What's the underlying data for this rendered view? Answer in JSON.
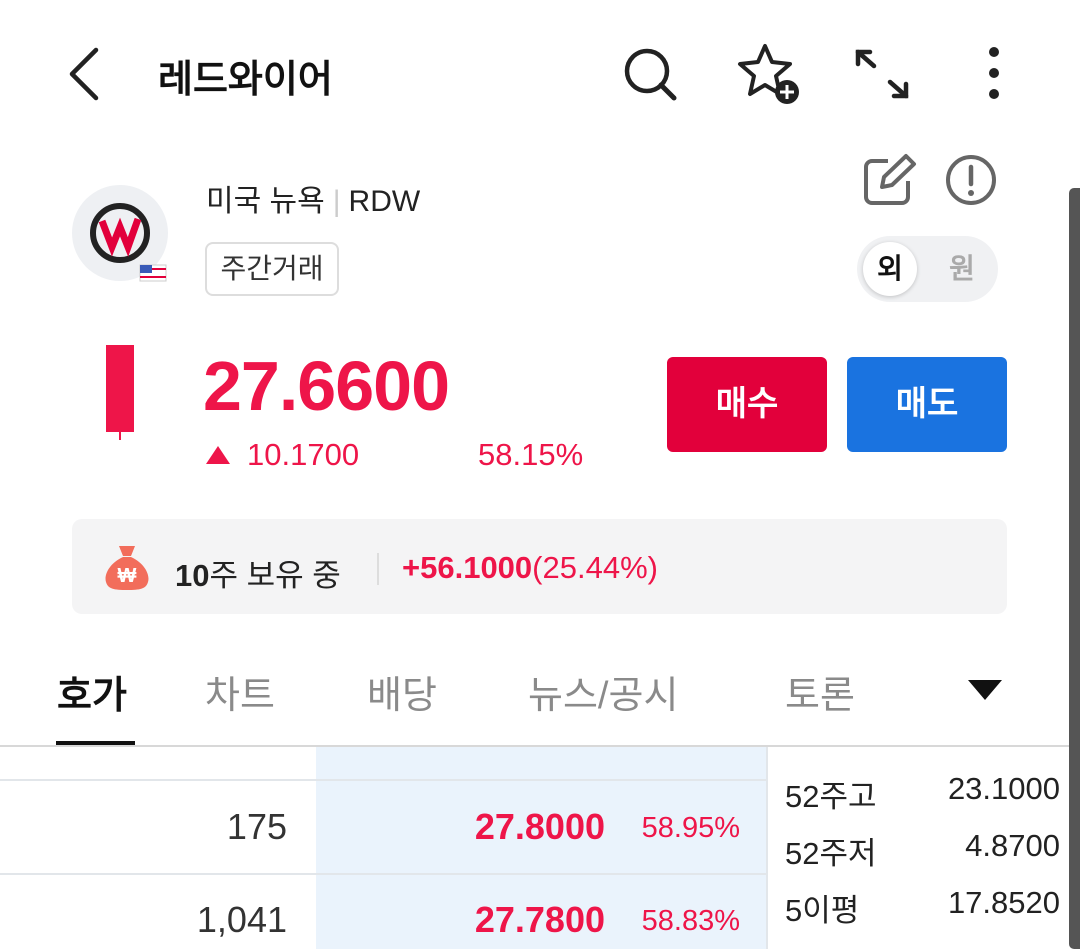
{
  "header": {
    "title": "레드와이어"
  },
  "stock": {
    "market": "미국 뉴욕",
    "ticker": "RDW",
    "badge": "주간거래",
    "currency_toggle": [
      "외",
      "원"
    ],
    "price": "27.6600",
    "change": "10.1700",
    "change_pct": "58.15%",
    "buy": "매수",
    "sell": "매도"
  },
  "holding": {
    "shares": "10",
    "shares_text": "주 보유 중",
    "profit": "+56.1000",
    "profit_pct": "(25.44%)"
  },
  "tabs": [
    "호가",
    "차트",
    "배당",
    "뉴스/공시",
    "토론"
  ],
  "orderbook": {
    "rows": [
      {
        "volume": "175",
        "price": "27.8000",
        "pct": "58.95%"
      },
      {
        "volume": "1,041",
        "price": "27.7800",
        "pct": "58.83%"
      }
    ]
  },
  "stats": [
    {
      "label": "52주고",
      "value": "23.1000"
    },
    {
      "label": "52주저",
      "value": "4.8700"
    },
    {
      "label": "5이평",
      "value": "17.8520"
    }
  ]
}
